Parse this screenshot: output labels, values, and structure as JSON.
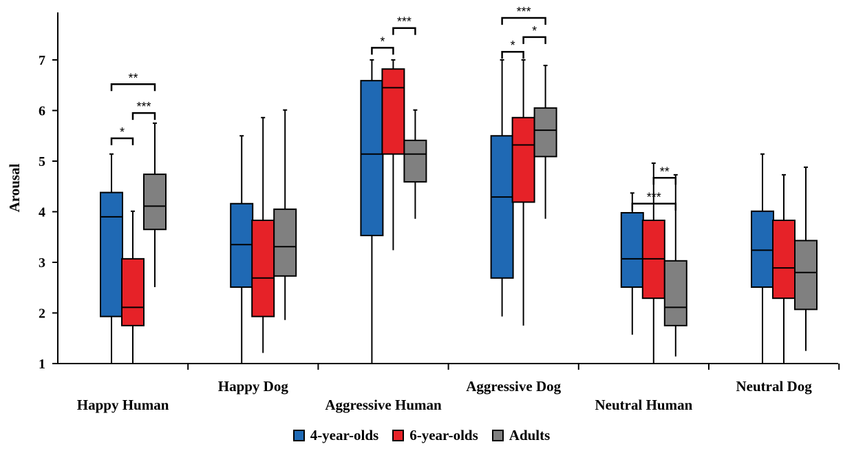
{
  "chart_data": {
    "type": "box",
    "title": "",
    "xlabel": "",
    "ylabel": "Arousal",
    "ylim": [
      1,
      7.9
    ],
    "yticks": [
      "1",
      "2",
      "3",
      "4",
      "5",
      "6",
      "7"
    ],
    "categories": [
      "Happy Human",
      "Happy Dog",
      "Aggressive Human",
      "Aggressive Dog",
      "Neutral Human",
      "Neutral Dog"
    ],
    "legend_position": "bottom",
    "series": [
      {
        "name": "4-year-olds",
        "color": "#1f69b4",
        "boxes": [
          {
            "min": 1.0,
            "q1": 1.93,
            "median": 3.9,
            "q3": 4.38,
            "max": 5.14
          },
          {
            "min": 1.0,
            "q1": 2.51,
            "median": 3.35,
            "q3": 4.16,
            "max": 5.5
          },
          {
            "min": 1.0,
            "q1": 3.53,
            "median": 5.14,
            "q3": 6.59,
            "max": 7.0
          },
          {
            "min": 1.93,
            "q1": 2.69,
            "median": 4.29,
            "q3": 5.5,
            "max": 7.0
          },
          {
            "min": 1.57,
            "q1": 2.51,
            "median": 3.07,
            "q3": 3.98,
            "max": 4.37
          },
          {
            "min": 1.0,
            "q1": 2.51,
            "median": 3.24,
            "q3": 4.01,
            "max": 5.14
          }
        ]
      },
      {
        "name": "6-year-olds",
        "color": "#e62228",
        "boxes": [
          {
            "min": 1.0,
            "q1": 1.75,
            "median": 2.11,
            "q3": 3.07,
            "max": 4.01
          },
          {
            "min": 1.21,
            "q1": 1.93,
            "median": 2.69,
            "q3": 3.83,
            "max": 5.86
          },
          {
            "min": 3.24,
            "q1": 5.14,
            "median": 6.45,
            "q3": 6.82,
            "max": 7.0
          },
          {
            "min": 1.75,
            "q1": 4.19,
            "median": 5.32,
            "q3": 5.86,
            "max": 7.0
          },
          {
            "min": 1.0,
            "q1": 2.29,
            "median": 3.07,
            "q3": 3.83,
            "max": 4.96
          },
          {
            "min": 1.0,
            "q1": 2.29,
            "median": 2.89,
            "q3": 3.83,
            "max": 4.73
          }
        ]
      },
      {
        "name": "Adults",
        "color": "#808080",
        "boxes": [
          {
            "min": 2.51,
            "q1": 3.65,
            "median": 4.11,
            "q3": 4.74,
            "max": 5.75
          },
          {
            "min": 1.86,
            "q1": 2.73,
            "median": 3.31,
            "q3": 4.05,
            "max": 6.01
          },
          {
            "min": 3.86,
            "q1": 4.59,
            "median": 5.14,
            "q3": 5.41,
            "max": 6.01
          },
          {
            "min": 3.86,
            "q1": 5.09,
            "median": 5.61,
            "q3": 6.05,
            "max": 6.89
          },
          {
            "min": 1.14,
            "q1": 1.75,
            "median": 2.11,
            "q3": 3.03,
            "max": 4.73
          },
          {
            "min": 1.25,
            "q1": 2.07,
            "median": 2.8,
            "q3": 3.43,
            "max": 4.88
          }
        ]
      }
    ],
    "significance": [
      {
        "category": 0,
        "from": 0,
        "to": 1,
        "y": 5.45,
        "label": "*"
      },
      {
        "category": 0,
        "from": 1,
        "to": 2,
        "y": 5.95,
        "label": "***"
      },
      {
        "category": 0,
        "from": 0,
        "to": 2,
        "y": 6.52,
        "label": "**"
      },
      {
        "category": 2,
        "from": 0,
        "to": 1,
        "y": 7.24,
        "label": "*"
      },
      {
        "category": 2,
        "from": 1,
        "to": 2,
        "y": 7.63,
        "label": "***"
      },
      {
        "category": 3,
        "from": 0,
        "to": 1,
        "y": 7.16,
        "label": "*"
      },
      {
        "category": 3,
        "from": 1,
        "to": 2,
        "y": 7.45,
        "label": "*"
      },
      {
        "category": 3,
        "from": 0,
        "to": 2,
        "y": 7.83,
        "label": "***"
      },
      {
        "category": 4,
        "from": 1,
        "to": 2,
        "y": 4.67,
        "label": "**"
      },
      {
        "category": 4,
        "from": 0,
        "to": 2,
        "y": 4.16,
        "label": "***"
      }
    ]
  }
}
